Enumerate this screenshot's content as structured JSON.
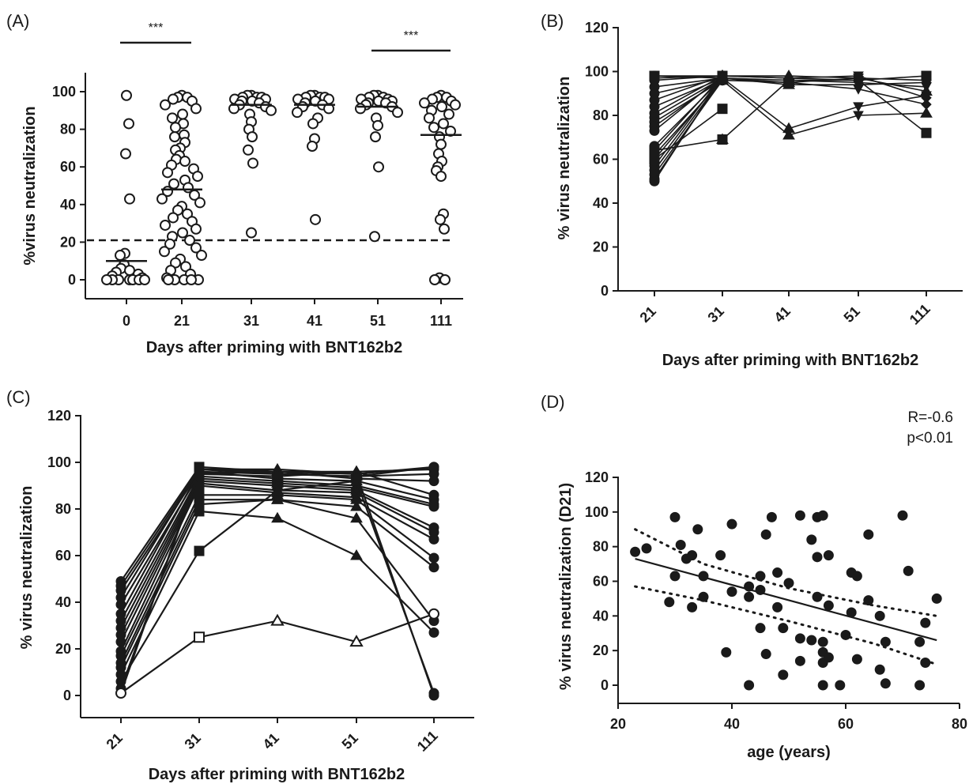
{
  "chart_data": [
    {
      "id": "A",
      "panel_label": "(A)",
      "type": "scatter",
      "categories": [
        "0",
        "21",
        "31",
        "41",
        "51",
        "111"
      ],
      "xlabel": "Days after priming with BNT162b2",
      "ylabel": "%virus neutralization",
      "ylim": [
        -8,
        108
      ],
      "yticks": [
        0,
        20,
        40,
        60,
        80,
        100
      ],
      "threshold": 21,
      "means": [
        10,
        48,
        93,
        93,
        92,
        77
      ],
      "significance": [
        {
          "from": "0",
          "to": "21",
          "label": "***"
        },
        {
          "from": "51",
          "to": "111",
          "label": "***"
        }
      ],
      "points": [
        [
          98,
          83,
          67,
          43,
          14,
          13,
          8,
          6,
          5,
          4,
          3,
          2,
          1,
          0,
          0,
          0,
          0,
          0,
          0,
          0
        ],
        [
          98,
          97,
          97,
          96,
          95,
          93,
          91,
          88,
          86,
          83,
          81,
          77,
          76,
          73,
          70,
          69,
          66,
          64,
          63,
          61,
          59,
          57,
          55,
          53,
          51,
          49,
          47,
          45,
          43,
          41,
          39,
          37,
          35,
          33,
          31,
          29,
          27,
          25,
          23,
          21,
          19,
          17,
          15,
          13,
          11,
          9,
          7,
          5,
          3,
          1,
          0,
          0,
          0,
          0,
          0
        ],
        [
          98,
          98,
          97,
          97,
          97,
          96,
          96,
          95,
          95,
          94,
          93,
          92,
          91,
          90,
          88,
          84,
          80,
          76,
          69,
          62,
          25
        ],
        [
          98,
          98,
          97,
          97,
          97,
          96,
          96,
          95,
          94,
          93,
          92,
          91,
          89,
          86,
          83,
          75,
          71,
          32
        ],
        [
          98,
          98,
          97,
          97,
          96,
          96,
          95,
          95,
          94,
          94,
          93,
          92,
          91,
          89,
          86,
          82,
          76,
          60,
          23
        ],
        [
          98,
          97,
          97,
          96,
          95,
          94,
          93,
          92,
          90,
          88,
          86,
          83,
          81,
          79,
          76,
          72,
          67,
          63,
          60,
          58,
          55,
          35,
          32,
          27,
          1,
          0,
          0
        ]
      ]
    },
    {
      "id": "B",
      "panel_label": "(B)",
      "type": "line",
      "categories": [
        "21",
        "31",
        "41",
        "51",
        "111"
      ],
      "xlabel": "Days after priming with BNT162b2",
      "ylabel": "% virus neutralization",
      "ylim": [
        0,
        120
      ],
      "yticks": [
        0,
        20,
        40,
        60,
        80,
        100,
        120
      ],
      "series": [
        {
          "marker": "circle",
          "values": [
            98,
            97,
            null,
            null,
            null
          ]
        },
        {
          "marker": "circle",
          "values": [
            97,
            98,
            null,
            null,
            null
          ]
        },
        {
          "marker": "circle",
          "values": [
            96,
            98,
            null,
            null,
            null
          ]
        },
        {
          "marker": "circle",
          "values": [
            93,
            97,
            null,
            null,
            null
          ]
        },
        {
          "marker": "circle",
          "values": [
            90,
            97,
            null,
            null,
            null
          ]
        },
        {
          "marker": "circle",
          "values": [
            87,
            98,
            null,
            null,
            null
          ]
        },
        {
          "marker": "circle",
          "values": [
            84,
            97,
            null,
            null,
            null
          ]
        },
        {
          "marker": "circle",
          "values": [
            81,
            98,
            null,
            null,
            null
          ]
        },
        {
          "marker": "circle",
          "values": [
            79,
            97,
            null,
            null,
            null
          ]
        },
        {
          "marker": "circle",
          "values": [
            77,
            96,
            null,
            null,
            null
          ]
        },
        {
          "marker": "circle",
          "values": [
            75,
            97,
            null,
            null,
            null
          ]
        },
        {
          "marker": "circle",
          "values": [
            73,
            98,
            null,
            null,
            null
          ]
        },
        {
          "marker": "circle",
          "values": [
            66,
            97,
            null,
            null,
            null
          ]
        },
        {
          "marker": "circle",
          "values": [
            64,
            98,
            null,
            null,
            null
          ]
        },
        {
          "marker": "circle",
          "values": [
            62,
            96,
            null,
            null,
            null
          ]
        },
        {
          "marker": "circle",
          "values": [
            60,
            97,
            null,
            null,
            null
          ]
        },
        {
          "marker": "circle",
          "values": [
            57,
            98,
            null,
            null,
            null
          ]
        },
        {
          "marker": "circle",
          "values": [
            55,
            97,
            null,
            null,
            null
          ]
        },
        {
          "marker": "circle",
          "values": [
            53,
            96,
            null,
            null,
            null
          ]
        },
        {
          "marker": "circle",
          "values": [
            51,
            97,
            null,
            null,
            null
          ]
        },
        {
          "marker": "circle",
          "values": [
            50,
            98,
            null,
            null,
            null
          ]
        },
        {
          "marker": "square",
          "values": [
            98,
            98,
            null,
            null,
            null
          ]
        },
        {
          "marker": "square",
          "values": [
            64,
            69,
            null,
            null,
            null
          ]
        },
        {
          "marker": "square",
          "values": [
            60,
            83,
            null,
            null,
            null
          ]
        },
        {
          "marker": "triangle",
          "values": [
            null,
            98,
            98,
            97,
            96
          ]
        },
        {
          "marker": "triangle",
          "values": [
            null,
            97,
            94,
            94,
            95
          ]
        },
        {
          "marker": "triangle",
          "values": [
            null,
            97,
            74,
            84,
            89
          ]
        },
        {
          "marker": "triangle",
          "values": [
            null,
            69,
            96,
            96,
            98
          ]
        },
        {
          "marker": "triangle",
          "values": [
            null,
            96,
            71,
            80,
            81
          ]
        },
        {
          "marker": "triangle",
          "values": [
            null,
            98,
            97,
            98,
            88
          ]
        },
        {
          "marker": "triangle",
          "values": [
            null,
            96,
            95,
            92,
            85
          ]
        },
        {
          "marker": "triangle",
          "values": [
            null,
            97,
            96,
            95,
            93
          ]
        },
        {
          "marker": "triangle",
          "values": [
            null,
            98,
            97,
            96,
            72
          ]
        },
        {
          "marker": "triangle",
          "values": [
            null,
            97,
            95,
            97,
            91
          ]
        }
      ]
    },
    {
      "id": "C",
      "panel_label": "(C)",
      "type": "line",
      "categories": [
        "21",
        "31",
        "41",
        "51",
        "111"
      ],
      "xlabel": "Days after priming with BNT162b2",
      "ylabel": "% virus neutralization",
      "ylim": [
        0,
        120
      ],
      "yticks": [
        0,
        20,
        40,
        60,
        80,
        100,
        120
      ],
      "series": [
        {
          "filled": true,
          "values": [
            49,
            98,
            96,
            96,
            97
          ]
        },
        {
          "filled": true,
          "values": [
            47,
            97,
            97,
            95,
            98
          ]
        },
        {
          "filled": true,
          "values": [
            45,
            96,
            95,
            94,
            95
          ]
        },
        {
          "filled": true,
          "values": [
            42,
            97,
            96,
            93,
            92
          ]
        },
        {
          "filled": true,
          "values": [
            39,
            95,
            94,
            96,
            86
          ]
        },
        {
          "filled": true,
          "values": [
            35,
            96,
            93,
            92,
            84
          ]
        },
        {
          "filled": true,
          "values": [
            32,
            94,
            92,
            90,
            82
          ]
        },
        {
          "filled": true,
          "values": [
            29,
            93,
            91,
            89,
            81
          ]
        },
        {
          "filled": true,
          "values": [
            26,
            92,
            90,
            88,
            72
          ]
        },
        {
          "filled": true,
          "values": [
            23,
            91,
            88,
            87,
            70
          ]
        },
        {
          "filled": true,
          "values": [
            19,
            90,
            87,
            85,
            67
          ]
        },
        {
          "filled": true,
          "values": [
            17,
            86,
            86,
            84,
            59
          ]
        },
        {
          "filled": true,
          "values": [
            14,
            84,
            84,
            81,
            55
          ]
        },
        {
          "filled": true,
          "values": [
            12,
            82,
            84,
            76,
            32
          ]
        },
        {
          "filled": true,
          "values": [
            9,
            79,
            76,
            60,
            27
          ]
        },
        {
          "filled": true,
          "values": [
            6,
            62,
            88,
            92,
            1
          ]
        },
        {
          "filled": true,
          "values": [
            3,
            95,
            96,
            95,
            0
          ]
        },
        {
          "filled": true,
          "values": [
            1,
            97,
            95,
            94,
            98
          ]
        },
        {
          "filled": false,
          "values": [
            1,
            25,
            32,
            23,
            35
          ]
        }
      ]
    },
    {
      "id": "D",
      "panel_label": "(D)",
      "type": "scatter",
      "xlabel": "age (years)",
      "ylabel": "% virus neutralization (D21)",
      "xlim": [
        20,
        80
      ],
      "xticks": [
        20,
        40,
        60,
        80
      ],
      "ylim": [
        -8,
        122
      ],
      "yticks": [
        0,
        20,
        40,
        60,
        80,
        100,
        120
      ],
      "annotation": [
        "R=-0.6",
        "p<0.01"
      ],
      "regression": {
        "x": [
          23,
          76
        ],
        "y": [
          73,
          26
        ]
      },
      "ci_upper": {
        "x": [
          23,
          35,
          50,
          65,
          76
        ],
        "y": [
          90,
          70,
          56,
          46,
          40
        ]
      },
      "ci_lower": {
        "x": [
          23,
          35,
          50,
          65,
          76
        ],
        "y": [
          57,
          49,
          37,
          24,
          12
        ]
      },
      "points": [
        [
          23,
          77
        ],
        [
          25,
          79
        ],
        [
          29,
          48
        ],
        [
          30,
          97
        ],
        [
          30,
          63
        ],
        [
          31,
          81
        ],
        [
          32,
          73
        ],
        [
          33,
          75
        ],
        [
          33,
          45
        ],
        [
          34,
          90
        ],
        [
          35,
          63
        ],
        [
          35,
          51
        ],
        [
          38,
          75
        ],
        [
          39,
          19
        ],
        [
          40,
          93
        ],
        [
          40,
          54
        ],
        [
          43,
          57
        ],
        [
          43,
          51
        ],
        [
          43,
          0
        ],
        [
          45,
          63
        ],
        [
          45,
          55
        ],
        [
          45,
          33
        ],
        [
          46,
          87
        ],
        [
          46,
          18
        ],
        [
          47,
          97
        ],
        [
          48,
          65
        ],
        [
          48,
          45
        ],
        [
          49,
          33
        ],
        [
          49,
          6
        ],
        [
          50,
          59
        ],
        [
          52,
          98
        ],
        [
          52,
          27
        ],
        [
          52,
          14
        ],
        [
          54,
          84
        ],
        [
          54,
          26
        ],
        [
          55,
          97
        ],
        [
          55,
          74
        ],
        [
          55,
          51
        ],
        [
          56,
          98
        ],
        [
          56,
          25
        ],
        [
          56,
          19
        ],
        [
          56,
          13
        ],
        [
          56,
          0
        ],
        [
          57,
          75
        ],
        [
          57,
          46
        ],
        [
          57,
          16
        ],
        [
          59,
          0
        ],
        [
          60,
          29
        ],
        [
          61,
          65
        ],
        [
          61,
          42
        ],
        [
          62,
          63
        ],
        [
          62,
          15
        ],
        [
          64,
          87
        ],
        [
          64,
          49
        ],
        [
          66,
          40
        ],
        [
          66,
          9
        ],
        [
          67,
          25
        ],
        [
          67,
          1
        ],
        [
          70,
          98
        ],
        [
          71,
          66
        ],
        [
          73,
          25
        ],
        [
          73,
          0
        ],
        [
          74,
          36
        ],
        [
          74,
          13
        ],
        [
          76,
          50
        ]
      ]
    }
  ]
}
